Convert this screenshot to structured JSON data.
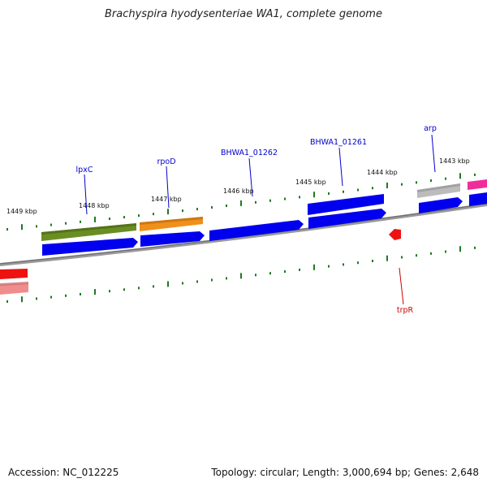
{
  "title": "Brachyspira hyodysenteriae WA1, complete genome",
  "footer": {
    "accession": "Accession: NC_012225",
    "summary": "Topology: circular; Length: 3,000,694 bp; Genes: 2,648"
  },
  "scale_labels": [
    "1449 kbp",
    "1448 kbp",
    "1447 kbp",
    "1446 kbp",
    "1445 kbp",
    "1444 kbp",
    "1443 kbp"
  ],
  "gene_labels": [
    "lpxC",
    "rpoD",
    "BHWA1_01262",
    "BHWA1_01261",
    "arp",
    "trpR"
  ],
  "colors": {
    "backbone": "#8a8a8a",
    "tick": "#1f7a1f",
    "cds": "#0000ee",
    "olive": "#6b8e23",
    "orange": "#f0901a",
    "gray": "#b8b8b8",
    "magenta": "#ee2d9b",
    "red": "#ee1111",
    "pink": "#ee8c8c",
    "forward_label": "#0000cc",
    "reverse_label": "#cc0000",
    "scale_text": "#111111"
  }
}
